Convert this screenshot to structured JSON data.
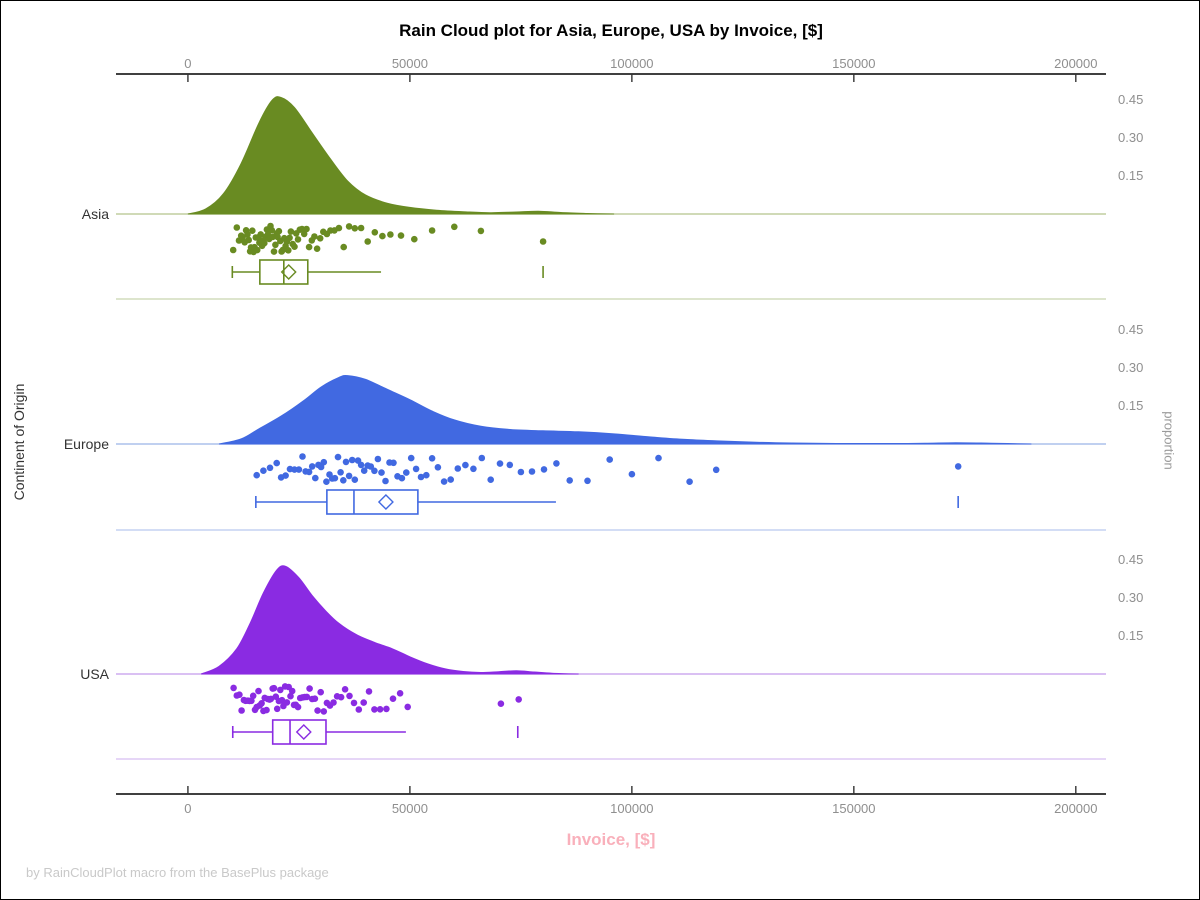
{
  "window": {
    "background": "#ffffff",
    "border_color": "#000000"
  },
  "chart": {
    "title": "Rain Cloud plot for Asia, Europe, USA by Invoice, [$]",
    "x_axis_label": "Invoice, [$]",
    "x_axis_label_color": "#f9b0bb",
    "y_axis_label": "Continent of Origin",
    "right_axis_label": "proportion",
    "footer": "by RainCloudPlot macro from the BasePlus package",
    "axis_line_color": "#000000",
    "tick_label_color": "#8f8f8f",
    "category_label_color": "#333333"
  },
  "chart_data": {
    "type": "raincloud (half-violin density + jittered strip + box plot per category)",
    "title": "Rain Cloud plot for Asia, Europe, USA by Invoice, [$]",
    "xlabel": "Invoice, [$]",
    "ylabel": "Continent of Origin",
    "right_axis": {
      "label": "proportion",
      "ticks_per_panel": [
        0.15,
        0.3,
        0.45
      ]
    },
    "x_axis": {
      "ticks": [
        0,
        50000,
        100000,
        150000,
        200000
      ],
      "range": [
        -16200,
        206800
      ],
      "shown_top_and_bottom": true
    },
    "categories": [
      "Asia",
      "Europe",
      "USA"
    ],
    "groups": [
      {
        "name": "Asia",
        "color": "#698b22",
        "baseline_color": "#b3c48c",
        "separator_color": "#dde5cd",
        "box": {
          "min": 10000,
          "q1": 16200,
          "median": 21600,
          "mean": 22700,
          "q3": 27000,
          "max": 43500,
          "far_outlier": 80000
        },
        "density": [
          [
            0,
            0
          ],
          [
            4000,
            0.02
          ],
          [
            8000,
            0.08
          ],
          [
            12000,
            0.2
          ],
          [
            16000,
            0.36
          ],
          [
            19000,
            0.45
          ],
          [
            21000,
            0.46
          ],
          [
            24000,
            0.42
          ],
          [
            28000,
            0.32
          ],
          [
            32000,
            0.22
          ],
          [
            36000,
            0.13
          ],
          [
            40000,
            0.075
          ],
          [
            45000,
            0.042
          ],
          [
            50000,
            0.026
          ],
          [
            56000,
            0.015
          ],
          [
            62000,
            0.009
          ],
          [
            68000,
            0.005
          ],
          [
            74000,
            0.008
          ],
          [
            79000,
            0.011
          ],
          [
            84000,
            0.006
          ],
          [
            90000,
            0.002
          ],
          [
            96000,
            0
          ]
        ],
        "points": [
          10200,
          11000,
          11500,
          12000,
          12300,
          12800,
          13100,
          13400,
          13700,
          14000,
          14200,
          14500,
          14800,
          15000,
          15300,
          15600,
          15900,
          16100,
          16400,
          16700,
          17000,
          17200,
          17500,
          17800,
          18000,
          18300,
          18600,
          18900,
          19100,
          19400,
          19700,
          20000,
          20200,
          20500,
          20800,
          21100,
          21400,
          21700,
          22000,
          22300,
          22600,
          22900,
          23200,
          23600,
          24000,
          24400,
          24800,
          25200,
          25700,
          26200,
          26700,
          27300,
          27900,
          28500,
          29100,
          29800,
          30500,
          31300,
          32100,
          33000,
          34000,
          35100,
          36300,
          37600,
          39000,
          40500,
          42100,
          43800,
          45600,
          48000,
          51000,
          55000,
          60000,
          66000,
          80000
        ]
      },
      {
        "name": "Europe",
        "color": "#4169e1",
        "baseline_color": "#9bb4e8",
        "separator_color": "#d3ddf5",
        "box": {
          "min": 15300,
          "q1": 31300,
          "median": 37400,
          "mean": 44600,
          "q3": 51800,
          "max": 82900,
          "far_outlier": 173500
        },
        "density": [
          [
            7000,
            0
          ],
          [
            12000,
            0.02
          ],
          [
            16000,
            0.06
          ],
          [
            21000,
            0.11
          ],
          [
            26000,
            0.17
          ],
          [
            30000,
            0.225
          ],
          [
            34000,
            0.263
          ],
          [
            36000,
            0.27
          ],
          [
            40000,
            0.255
          ],
          [
            45000,
            0.215
          ],
          [
            50000,
            0.175
          ],
          [
            55000,
            0.13
          ],
          [
            60000,
            0.095
          ],
          [
            66000,
            0.07
          ],
          [
            72000,
            0.058
          ],
          [
            80000,
            0.052
          ],
          [
            88000,
            0.048
          ],
          [
            96000,
            0.04
          ],
          [
            104000,
            0.028
          ],
          [
            112000,
            0.018
          ],
          [
            120000,
            0.012
          ],
          [
            128000,
            0.007
          ],
          [
            136000,
            0.004
          ],
          [
            146000,
            0.002
          ],
          [
            158000,
            0.002
          ],
          [
            166000,
            0.003
          ],
          [
            173000,
            0.005
          ],
          [
            181000,
            0.003
          ],
          [
            190000,
            0
          ]
        ],
        "points": [
          15500,
          17000,
          18500,
          20000,
          21000,
          22000,
          23000,
          24000,
          25000,
          25800,
          26500,
          27300,
          28000,
          28700,
          29400,
          30000,
          30600,
          31200,
          31900,
          32500,
          33100,
          33800,
          34400,
          35000,
          35600,
          36300,
          37000,
          37600,
          38300,
          39000,
          39700,
          40500,
          41200,
          42000,
          42800,
          43600,
          44500,
          45400,
          46300,
          47200,
          48200,
          49200,
          50300,
          51400,
          52500,
          53700,
          55000,
          56300,
          57700,
          59200,
          60800,
          62500,
          64300,
          66200,
          68200,
          70300,
          72500,
          75000,
          77500,
          80200,
          83000,
          86000,
          90000,
          95000,
          100000,
          106000,
          113000,
          119000,
          173500
        ]
      },
      {
        "name": "USA",
        "color": "#8a2be2",
        "baseline_color": "#c49aec",
        "separator_color": "#e6d6f7",
        "box": {
          "min": 10100,
          "q1": 19100,
          "median": 23000,
          "mean": 26100,
          "q3": 31100,
          "max": 49100,
          "far_outlier": 74300
        },
        "density": [
          [
            3000,
            0
          ],
          [
            7000,
            0.03
          ],
          [
            11000,
            0.1
          ],
          [
            14000,
            0.2
          ],
          [
            17000,
            0.32
          ],
          [
            20000,
            0.41
          ],
          [
            22000,
            0.425
          ],
          [
            25000,
            0.38
          ],
          [
            28000,
            0.31
          ],
          [
            31000,
            0.25
          ],
          [
            34000,
            0.2
          ],
          [
            38000,
            0.155
          ],
          [
            42000,
            0.125
          ],
          [
            46000,
            0.1
          ],
          [
            50000,
            0.068
          ],
          [
            54000,
            0.04
          ],
          [
            58000,
            0.02
          ],
          [
            62000,
            0.01
          ],
          [
            66000,
            0.006
          ],
          [
            70000,
            0.009
          ],
          [
            74000,
            0.013
          ],
          [
            78000,
            0.008
          ],
          [
            82000,
            0.003
          ],
          [
            88000,
            0
          ]
        ],
        "points": [
          10300,
          11000,
          11600,
          12100,
          12600,
          13000,
          13500,
          13900,
          14300,
          14700,
          15100,
          15500,
          15900,
          16200,
          16600,
          17000,
          17300,
          17700,
          18000,
          18400,
          18700,
          19100,
          19400,
          19800,
          20100,
          20500,
          20800,
          21200,
          21500,
          21900,
          22300,
          22700,
          23100,
          23500,
          23900,
          24300,
          24800,
          25300,
          25800,
          26300,
          26800,
          27400,
          28000,
          28600,
          29200,
          29900,
          30600,
          31300,
          32000,
          32800,
          33600,
          34500,
          35400,
          36400,
          37400,
          38500,
          39600,
          40800,
          42000,
          43300,
          44700,
          46200,
          47800,
          49500,
          70500,
          74500
        ]
      }
    ],
    "legend": "none",
    "grid": "off"
  }
}
